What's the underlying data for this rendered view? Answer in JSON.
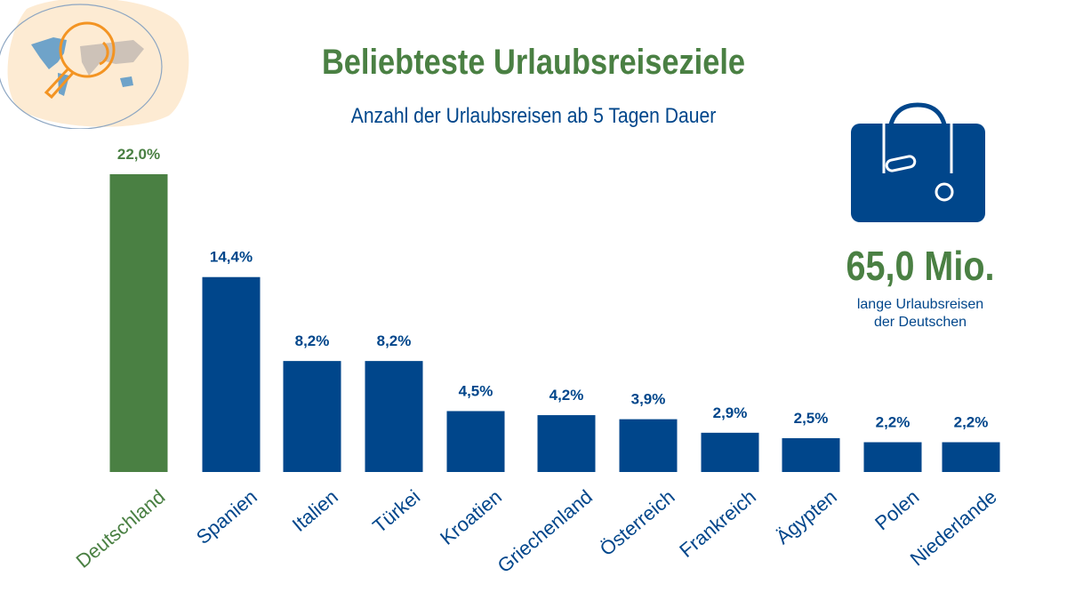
{
  "header": {
    "title": "Beliebteste Urlaubsreiseziele",
    "subtitle": "Anzahl der Urlaubsreisen ab 5 Tagen Dauer"
  },
  "stat": {
    "value": "65,0 Mio.",
    "label_line1": "lange Urlaubsreisen",
    "label_line2": "der Deutschen",
    "icon": "suitcase-icon"
  },
  "logo": {
    "icon": "world-map-magnifier-icon"
  },
  "colors": {
    "highlight": "#4a8043",
    "bars": "#00468b"
  },
  "chart_data": {
    "type": "bar",
    "title": "Beliebteste Urlaubsreiseziele",
    "subtitle": "Anzahl der Urlaubsreisen ab 5 Tagen Dauer",
    "categories": [
      "Deutschland",
      "Spanien",
      "Italien",
      "Türkei",
      "Kroatien",
      "Griechenland",
      "Österreich",
      "Frankreich",
      "Ägypten",
      "Polen",
      "Niederlande"
    ],
    "values": [
      22.0,
      14.4,
      8.2,
      8.2,
      4.5,
      4.2,
      3.9,
      2.9,
      2.5,
      2.2,
      2.2
    ],
    "data_labels": [
      "22,0%",
      "14,4%",
      "8,2%",
      "8,2%",
      "4,5%",
      "4,2%",
      "3,9%",
      "2,9%",
      "2,5%",
      "2,2%",
      "2,2%"
    ],
    "unit": "%",
    "highlighted_category": "Deutschland",
    "ylim": [
      0,
      22
    ],
    "grid": false,
    "legend": "none"
  }
}
